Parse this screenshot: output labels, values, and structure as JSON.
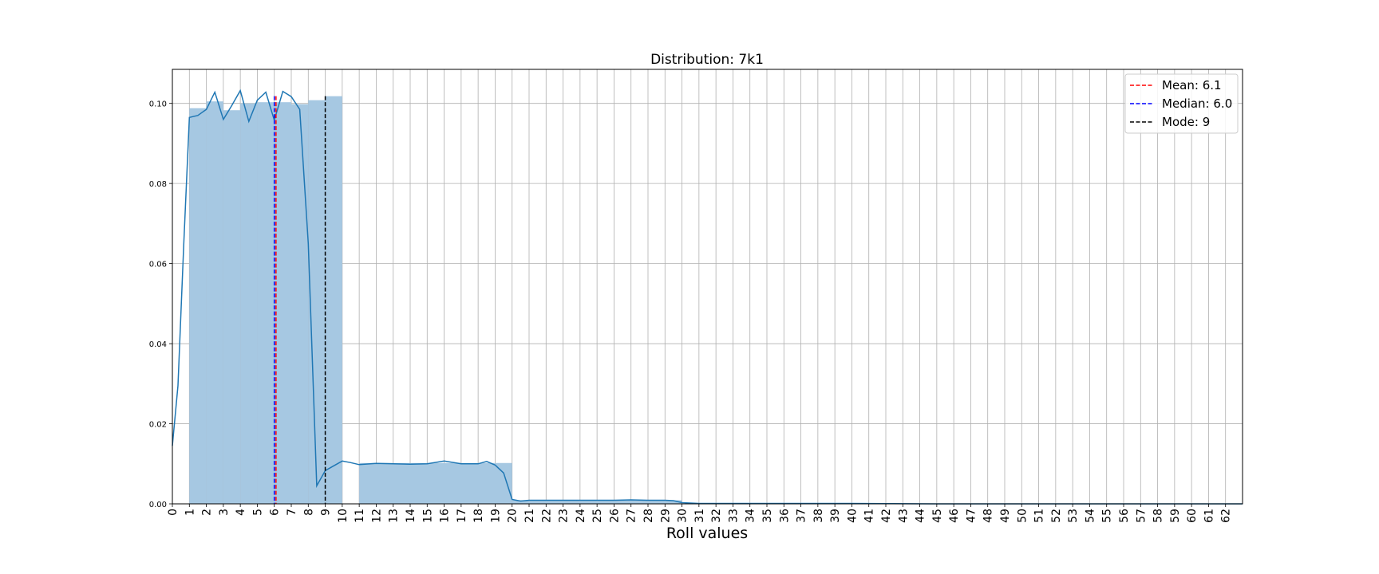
{
  "chart_data": {
    "type": "bar",
    "title": "Distribution: 7k1",
    "xlabel": "Roll values",
    "ylabel": "",
    "xlim": [
      0,
      63
    ],
    "ylim": [
      0,
      0.1085
    ],
    "grid": true,
    "x_ticks": [
      "0",
      "1",
      "2",
      "3",
      "4",
      "5",
      "6",
      "7",
      "8",
      "9",
      "10",
      "11",
      "12",
      "13",
      "14",
      "15",
      "16",
      "17",
      "18",
      "19",
      "20",
      "21",
      "22",
      "23",
      "24",
      "25",
      "26",
      "27",
      "28",
      "29",
      "30",
      "31",
      "32",
      "33",
      "34",
      "35",
      "36",
      "37",
      "38",
      "39",
      "40",
      "41",
      "42",
      "43",
      "44",
      "45",
      "46",
      "47",
      "48",
      "49",
      "50",
      "51",
      "52",
      "53",
      "54",
      "55",
      "56",
      "57",
      "58",
      "59",
      "60",
      "61",
      "62"
    ],
    "y_ticks": [
      "0.00",
      "0.02",
      "0.04",
      "0.06",
      "0.08",
      "0.10"
    ],
    "histogram": {
      "name": "",
      "color": "#a6c8e2",
      "bins": [
        {
          "x0": 1,
          "x1": 2,
          "value": 0.0988
        },
        {
          "x0": 2,
          "x1": 3,
          "value": 0.1005
        },
        {
          "x0": 3,
          "x1": 4,
          "value": 0.0983
        },
        {
          "x0": 4,
          "x1": 5,
          "value": 0.1
        },
        {
          "x0": 5,
          "x1": 6,
          "value": 0.1003
        },
        {
          "x0": 6,
          "x1": 7,
          "value": 0.1003
        },
        {
          "x0": 7,
          "x1": 8,
          "value": 0.0998
        },
        {
          "x0": 8,
          "x1": 9,
          "value": 0.1008
        },
        {
          "x0": 9,
          "x1": 10,
          "value": 0.1018
        },
        {
          "x0": 11,
          "x1": 20,
          "value": 0.0102
        },
        {
          "x0": 20,
          "x1": 30,
          "value": 0.0009
        }
      ]
    },
    "kde_line": {
      "color": "#1f77b4",
      "x": [
        0,
        0.33,
        0.67,
        1,
        1.5,
        2,
        2.5,
        3,
        3.5,
        4,
        4.5,
        5,
        5.5,
        6,
        6.5,
        7,
        7.5,
        8,
        8.5,
        9,
        9.5,
        10,
        10.5,
        11,
        12,
        13,
        14,
        15,
        16,
        17,
        18,
        18.5,
        19,
        19.5,
        20,
        20.5,
        21,
        22,
        23,
        24,
        25,
        26,
        27,
        28,
        29,
        29.5,
        30,
        31,
        35,
        40,
        45,
        50,
        55,
        60,
        63
      ],
      "y": [
        0.0145,
        0.0295,
        0.065,
        0.0965,
        0.097,
        0.0985,
        0.1028,
        0.096,
        0.0995,
        0.1032,
        0.0955,
        0.1008,
        0.1028,
        0.0958,
        0.103,
        0.1017,
        0.0985,
        0.065,
        0.0045,
        0.0083,
        0.0095,
        0.0107,
        0.0103,
        0.0098,
        0.0101,
        0.01,
        0.0099,
        0.01,
        0.0107,
        0.01,
        0.01,
        0.0106,
        0.0097,
        0.0077,
        0.0011,
        0.0007,
        0.0009,
        0.0009,
        0.0009,
        0.0009,
        0.0009,
        0.0009,
        0.001,
        0.0009,
        0.0009,
        0.0008,
        0.0003,
        0.0001,
        0.0001,
        0.0001,
        0.0,
        0.0,
        0.0,
        0.0,
        0.0
      ]
    },
    "vertical_lines": [
      {
        "name": "Mean: 6.1",
        "x": 6.1,
        "color": "#ff0000",
        "style": "dashed"
      },
      {
        "name": "Median: 6.0",
        "x": 6.0,
        "color": "#0000ff",
        "style": "dashed"
      },
      {
        "name": "Mode: 9",
        "x": 9,
        "color": "#000000",
        "style": "dashed"
      }
    ],
    "legend": {
      "placement": "top-right",
      "entries": [
        "Mean: 6.1",
        "Median: 6.0",
        "Mode: 9"
      ]
    }
  }
}
